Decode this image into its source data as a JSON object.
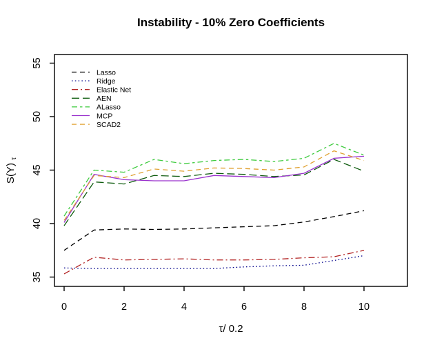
{
  "title": "Instability - 10% Zero Coefficients",
  "axes": {
    "xlabel": "τ/ 0.2",
    "ylabel_base": "S(Y)",
    "ylabel_sub": "τ"
  },
  "chart_data": {
    "type": "line",
    "title": "Instability - 10% Zero Coefficients",
    "xlabel": "τ/ 0.2",
    "ylabel": "S(Y)_τ",
    "x": [
      0,
      1,
      2,
      3,
      4,
      5,
      6,
      7,
      8,
      9,
      10
    ],
    "xticks": [
      0,
      2,
      4,
      6,
      8,
      10
    ],
    "yticks": [
      35,
      40,
      45,
      50,
      55
    ],
    "xlim": [
      -0.35,
      11.45
    ],
    "ylim": [
      34.1,
      56.5
    ],
    "grid": false,
    "legend_position": "top-left",
    "series": [
      {
        "name": "Lasso",
        "color": "#000000",
        "linestyle": "dashed",
        "values": [
          37.5,
          39.4,
          39.5,
          39.45,
          39.5,
          39.6,
          39.7,
          39.8,
          40.15,
          40.65,
          41.2
        ]
      },
      {
        "name": "Ridge",
        "color": "#00008b",
        "linestyle": "dotted",
        "values": [
          35.85,
          35.8,
          35.8,
          35.8,
          35.8,
          35.8,
          35.95,
          36.05,
          36.1,
          36.55,
          37.0
        ]
      },
      {
        "name": "Elastic Net",
        "color": "#b22222",
        "linestyle": "dashdot",
        "values": [
          35.3,
          36.85,
          36.6,
          36.65,
          36.7,
          36.6,
          36.6,
          36.65,
          36.8,
          36.9,
          37.5
        ]
      },
      {
        "name": "AEN",
        "color": "#0f5c0f",
        "linestyle": "longdash",
        "values": [
          39.8,
          43.9,
          43.7,
          44.5,
          44.4,
          44.7,
          44.6,
          44.4,
          44.55,
          46.0,
          44.9
        ]
      },
      {
        "name": "ALasso",
        "color": "#3ecb3e",
        "linestyle": "twodash",
        "values": [
          40.7,
          45.0,
          44.8,
          46.0,
          45.6,
          45.9,
          46.0,
          45.8,
          46.1,
          47.5,
          46.4
        ]
      },
      {
        "name": "MCP",
        "color": "#9a32cd",
        "linestyle": "solid",
        "values": [
          40.1,
          44.6,
          44.1,
          44.0,
          44.0,
          44.5,
          44.4,
          44.3,
          44.7,
          46.1,
          46.3
        ]
      },
      {
        "name": "SCAD2",
        "color": "#e0a030",
        "linestyle": "dashed",
        "values": [
          40.3,
          44.5,
          44.3,
          45.1,
          44.9,
          45.2,
          45.15,
          45.0,
          45.3,
          46.8,
          45.9
        ]
      }
    ]
  }
}
